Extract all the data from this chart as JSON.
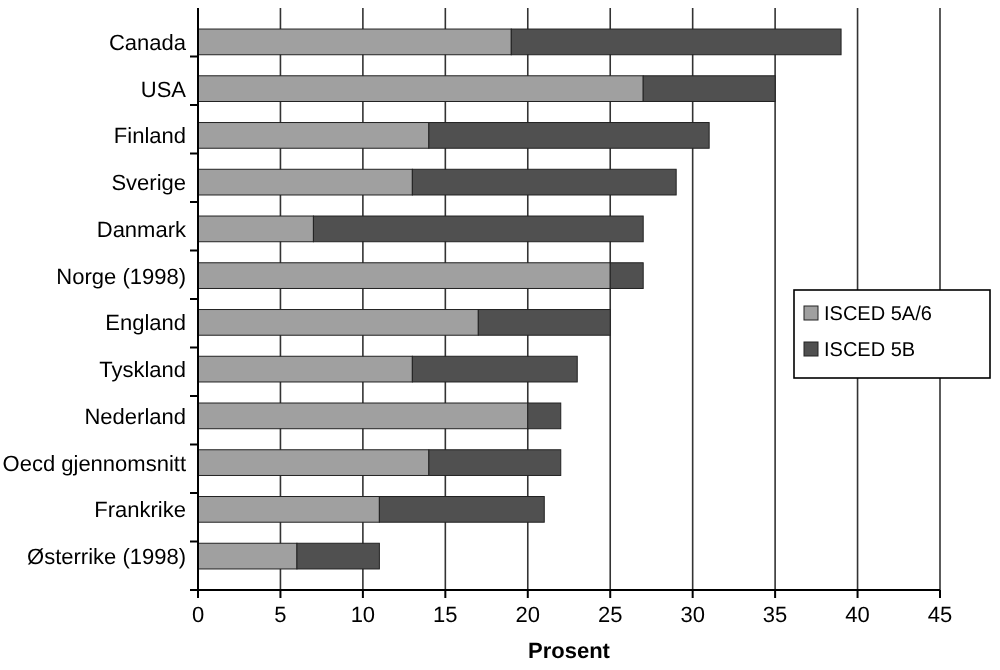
{
  "chart_data": {
    "type": "bar",
    "orientation": "horizontal",
    "stacked": true,
    "categories": [
      "Canada",
      "USA",
      "Finland",
      "Sverige",
      "Danmark",
      "Norge (1998)",
      "England",
      "Tyskland",
      "Nederland",
      "Oecd gjennomsnitt",
      "Frankrike",
      "Østerrike (1998)"
    ],
    "series": [
      {
        "name": "ISCED 5A/6",
        "color": "#a0a0a0",
        "values": [
          19,
          27,
          14,
          13,
          7,
          25,
          17,
          13,
          20,
          14,
          11,
          6
        ]
      },
      {
        "name": "ISCED 5B",
        "color": "#505050",
        "values": [
          20,
          8,
          17,
          16,
          20,
          2,
          8,
          10,
          2,
          8,
          10,
          5
        ]
      }
    ],
    "xlabel": "Prosent",
    "xlim": [
      0,
      45
    ],
    "xticks": [
      0,
      5,
      10,
      15,
      20,
      25,
      30,
      35,
      40,
      45
    ],
    "grid": "x",
    "legend": "right"
  }
}
